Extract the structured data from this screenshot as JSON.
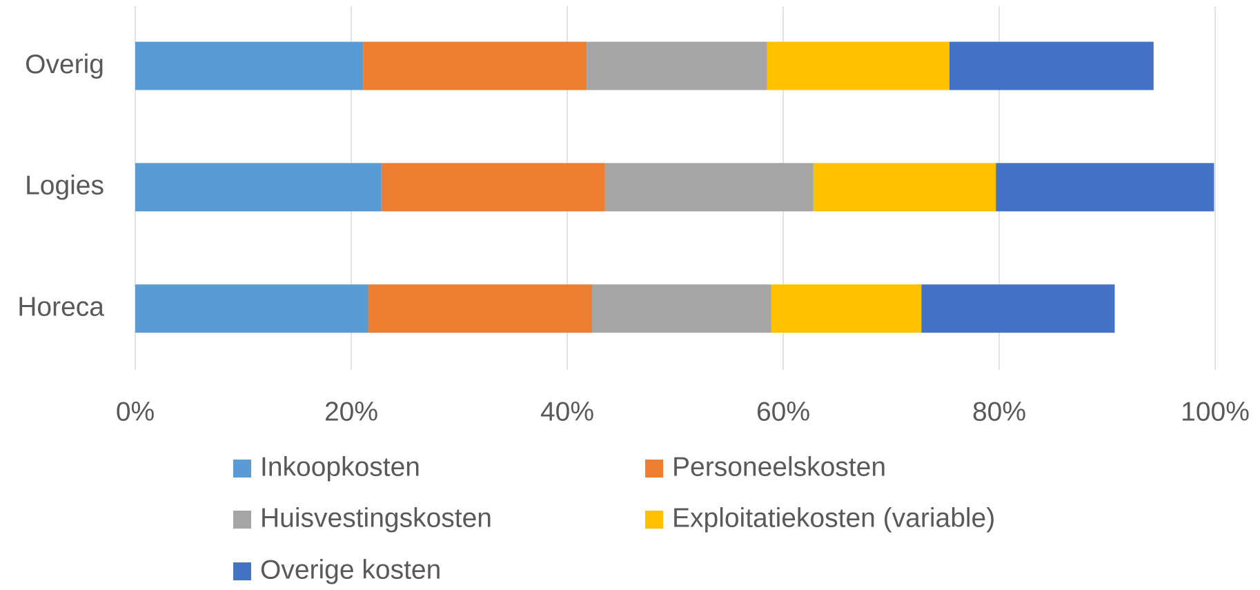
{
  "chart_data": {
    "type": "stacked-barh",
    "categories": [
      "Overig",
      "Logies",
      "Horeca"
    ],
    "series": [
      {
        "name": "Inkoopkosten",
        "color": "#5b9bd5",
        "values": [
          21.1,
          22.8,
          21.6
        ]
      },
      {
        "name": "Personeelskosten",
        "color": "#ed7d31",
        "values": [
          20.7,
          20.7,
          20.7
        ]
      },
      {
        "name": "Huisvestingskosten",
        "color": "#a5a5a5",
        "values": [
          16.7,
          19.3,
          16.6
        ]
      },
      {
        "name": "Exploitatiekosten (variable)",
        "color": "#ffc000",
        "values": [
          16.9,
          16.9,
          13.9
        ]
      },
      {
        "name": "Overige kosten",
        "color": "#4472c4",
        "values": [
          18.9,
          20.2,
          17.9
        ]
      }
    ],
    "xlim": [
      0,
      100
    ],
    "xticks": [
      {
        "value": 0,
        "label": "0%"
      },
      {
        "value": 20,
        "label": "20%"
      },
      {
        "value": 40,
        "label": "40%"
      },
      {
        "value": 60,
        "label": "60%"
      },
      {
        "value": 80,
        "label": "80%"
      },
      {
        "value": 100,
        "label": "100%"
      }
    ],
    "grid": true
  }
}
